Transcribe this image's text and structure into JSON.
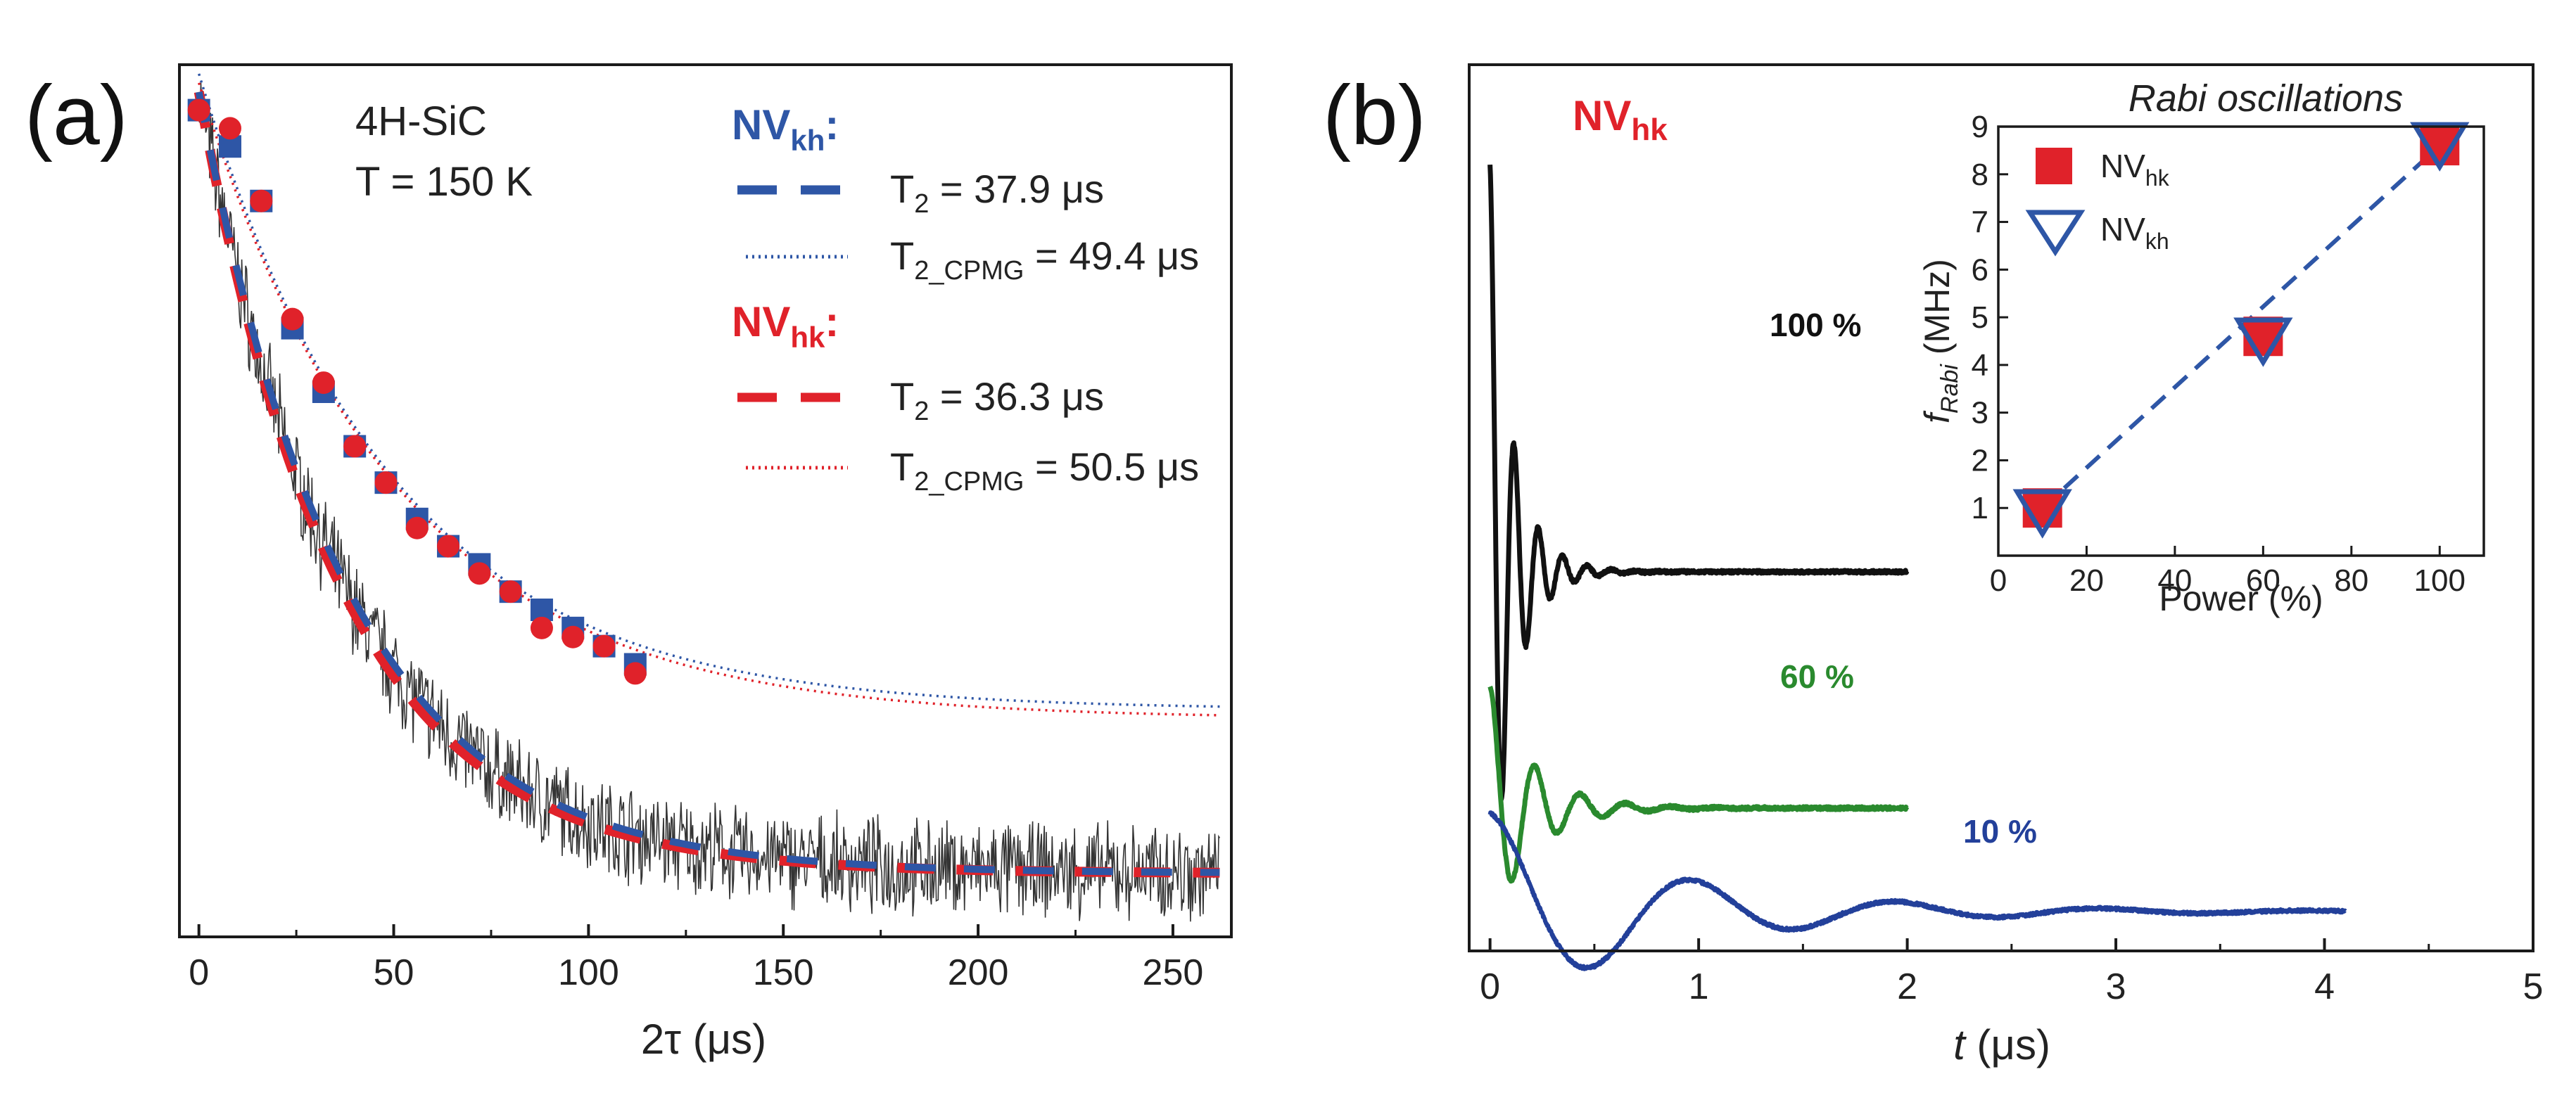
{
  "chart_data": [
    {
      "panel_label": "(a)",
      "type": "scatter",
      "sample": "4H-SiC",
      "temperature": "T = 150 K",
      "xlabel": "2τ (μs)",
      "ylabel": "",
      "xlim": [
        -5,
        265
      ],
      "ylim": [
        0.03,
        0.99
      ],
      "xticks": [
        "0",
        "50",
        "100",
        "150",
        "200",
        "250"
      ],
      "legend": {
        "kh_header": "NV",
        "kh_sub": "kh",
        "hk_header": "NV",
        "hk_sub": "hk",
        "kh_t2": "T₂ = 37.9 μs",
        "kh_t2_main": "T",
        "kh_t2_sub": "2",
        "kh_t2_val": " = 37.9 μs",
        "kh_cpmg_main": "T",
        "kh_cpmg_sub": "2_CPMG",
        "kh_cpmg_val": " = 49.4 μs",
        "hk_t2_main": "T",
        "hk_t2_sub": "2",
        "hk_t2_val": " = 36.3 μs",
        "hk_cpmg_main": "T",
        "hk_cpmg_sub": "2_CPMG",
        "hk_cpmg_val": " = 50.5 μs",
        "colon": ":"
      },
      "colors": {
        "kh": "#2e56a6",
        "hk": "#e0222a",
        "noise": "#111111"
      },
      "fits": {
        "kh_T2": 37.9,
        "hk_T2": 36.3,
        "kh_T2_CPMG": 49.4,
        "hk_T2_CPMG": 50.5,
        "t2_offset": 0.1,
        "t2_amp": 0.86,
        "cpmg_offset_kh": 0.28,
        "cpmg_offset_hk": 0.27,
        "cpmg_amp": 0.7
      },
      "series": [
        {
          "name": "NVkh CPMG (squares)",
          "x": [
            0,
            8,
            16,
            24,
            32,
            40,
            48,
            56,
            64,
            72,
            80,
            88,
            96,
            104,
            112
          ],
          "y": [
            0.94,
            0.9,
            0.84,
            0.7,
            0.63,
            0.57,
            0.53,
            0.49,
            0.46,
            0.44,
            0.41,
            0.39,
            0.37,
            0.35,
            0.33
          ]
        },
        {
          "name": "NVhk CPMG (circles)",
          "x": [
            0,
            8,
            16,
            24,
            32,
            40,
            48,
            56,
            64,
            72,
            80,
            88,
            96,
            104,
            112
          ],
          "y": [
            0.94,
            0.92,
            0.84,
            0.71,
            0.64,
            0.57,
            0.53,
            0.48,
            0.46,
            0.43,
            0.41,
            0.37,
            0.36,
            0.35,
            0.32
          ]
        }
      ]
    },
    {
      "panel_label": "(b)",
      "type": "line",
      "xlabel_main": "t",
      "xlabel_rest": " (μs)",
      "xlim": [
        -0.1,
        5
      ],
      "xticks": [
        "0",
        "1",
        "2",
        "3",
        "4",
        "5"
      ],
      "center_label": "NV",
      "center_label_sub": "hk",
      "series": [
        {
          "name": "100 %",
          "color": "#111111",
          "t_max": 2.0,
          "freq_MHz": 8.6,
          "amp": 0.58,
          "tau": 0.12,
          "baseline": 0.77
        },
        {
          "name": "60 %",
          "color": "#2a8a2e",
          "t_max": 2.0,
          "freq_MHz": 4.6,
          "amp": 0.25,
          "tau": 0.2,
          "baseline": 0.29
        },
        {
          "name": "10 %",
          "color": "#23409a",
          "t_max": 4.1,
          "freq_MHz": 1.02,
          "amp": 0.2,
          "tau": 0.85,
          "baseline": 0.08
        }
      ],
      "inset": {
        "type": "scatter",
        "title": "Rabi oscillations",
        "xlabel": "Power (%)",
        "ylabel_main": "f",
        "ylabel_sub": "Rabi",
        "ylabel_rest": " (MHz)",
        "xlim": [
          0,
          110
        ],
        "ylim": [
          0,
          9
        ],
        "xticks": [
          "0",
          "20",
          "40",
          "60",
          "80",
          "100"
        ],
        "yticks": [
          "1",
          "2",
          "3",
          "4",
          "5",
          "6",
          "7",
          "8",
          "9"
        ],
        "legend_hk_main": "NV",
        "legend_hk_sub": "hk",
        "legend_kh_main": "NV",
        "legend_kh_sub": "kh",
        "series": [
          {
            "name": "NVhk",
            "marker": "square",
            "color": "#e0222a",
            "x": [
              10,
              60,
              100
            ],
            "y": [
              1.0,
              4.6,
              8.6
            ]
          },
          {
            "name": "NVkh",
            "marker": "triangle-down",
            "color": "#2e56a6",
            "x": [
              10,
              60,
              100
            ],
            "y": [
              0.9,
              4.5,
              8.6
            ]
          }
        ],
        "fit_line": {
          "x": [
            10,
            100
          ],
          "y": [
            1.0,
            8.6
          ]
        }
      }
    }
  ]
}
